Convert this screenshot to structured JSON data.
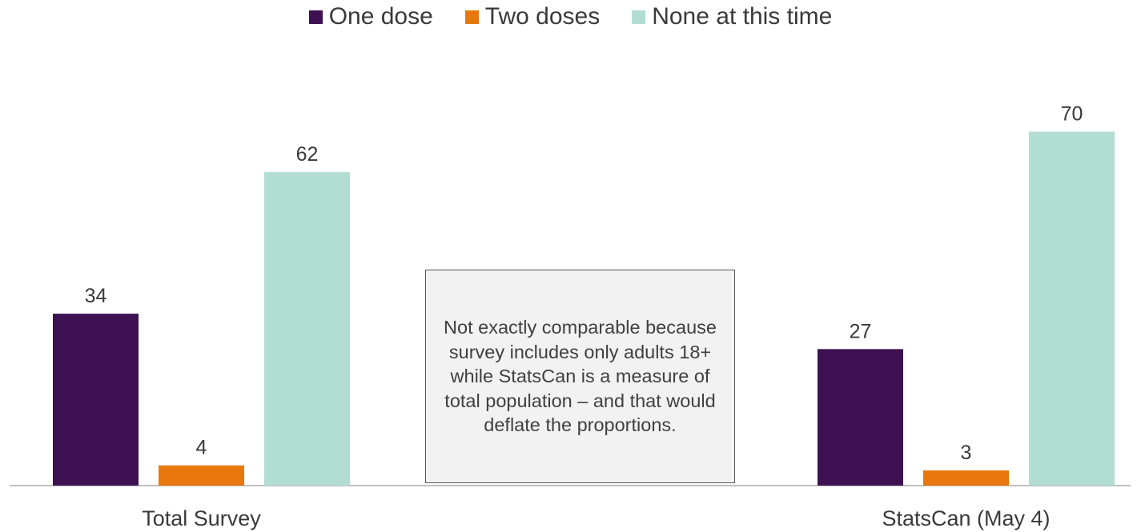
{
  "chart_data": {
    "type": "bar",
    "categories": [
      "Total Survey",
      "StatsCan (May 4)"
    ],
    "series": [
      {
        "name": "One dose",
        "values": [
          34,
          27
        ],
        "color": "#3d1152"
      },
      {
        "name": "Two doses",
        "values": [
          4,
          3
        ],
        "color": "#e8780e"
      },
      {
        "name": "None at this time",
        "values": [
          62,
          70
        ],
        "color": "#b2ddd3"
      }
    ],
    "title": "",
    "xlabel": "",
    "ylabel": "",
    "ylim": [
      0,
      80
    ],
    "grid": false,
    "legend": "top-center",
    "annotation": "Not exactly comparable because survey includes only adults 18+ while StatsCan is a measure of total population – and that would deflate the proportions."
  }
}
